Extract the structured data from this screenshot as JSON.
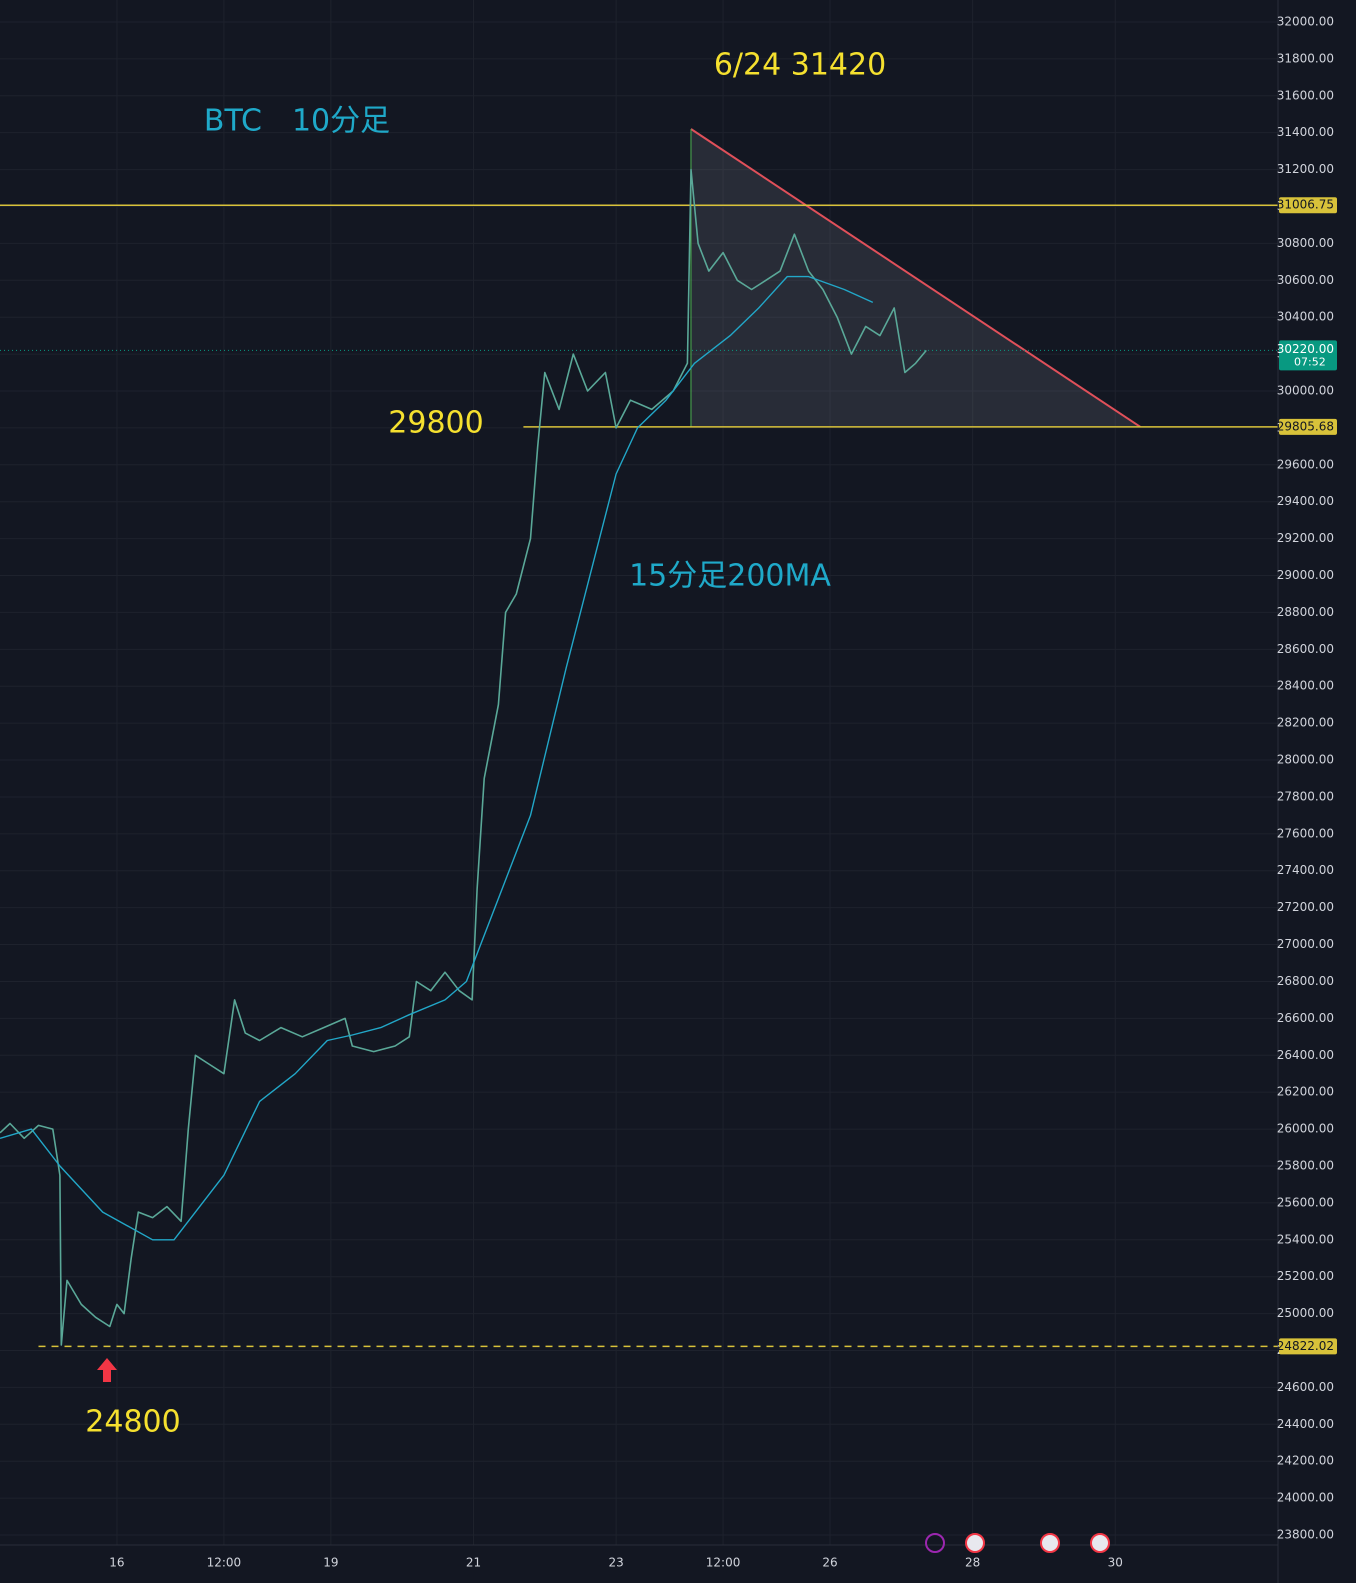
{
  "chart_data": {
    "type": "line",
    "background": "#131722",
    "grid": true,
    "xlim": [
      14.36,
      32.24
    ],
    "ylim": [
      23773,
      32119
    ],
    "xticks": [
      16,
      {
        "value": 17.5,
        "label": "12:00"
      },
      19,
      21,
      23,
      {
        "value": 24.5,
        "label": "12:00"
      },
      26,
      28,
      30
    ],
    "yticks": [
      {
        "value": 23800,
        "label": "23800.00"
      },
      {
        "value": 24000,
        "label": "24000.00"
      },
      {
        "value": 24200,
        "label": "24200.00"
      },
      {
        "value": 24400,
        "label": "24400.00"
      },
      {
        "value": 24600,
        "label": "24600.00"
      },
      {
        "value": 24800,
        "label": "24800.00"
      },
      {
        "value": 25000,
        "label": "25000.00"
      },
      {
        "value": 25200,
        "label": "25200.00"
      },
      {
        "value": 25400,
        "label": "25400.00"
      },
      {
        "value": 25600,
        "label": "25600.00"
      },
      {
        "value": 25800,
        "label": "25800.00"
      },
      {
        "value": 26000,
        "label": "26000.00"
      },
      {
        "value": 26200,
        "label": "26200.00"
      },
      {
        "value": 26400,
        "label": "26400.00"
      },
      {
        "value": 26600,
        "label": "26600.00"
      },
      {
        "value": 26800,
        "label": "26800.00"
      },
      {
        "value": 27000,
        "label": "27000.00"
      },
      {
        "value": 27200,
        "label": "27200.00"
      },
      {
        "value": 27400,
        "label": "27400.00"
      },
      {
        "value": 27600,
        "label": "27600.00"
      },
      {
        "value": 27800,
        "label": "27800.00"
      },
      {
        "value": 28000,
        "label": "28000.00"
      },
      {
        "value": 28200,
        "label": "28200.00"
      },
      {
        "value": 28400,
        "label": "28400.00"
      },
      {
        "value": 28600,
        "label": "28600.00"
      },
      {
        "value": 28800,
        "label": "28800.00"
      },
      {
        "value": 29000,
        "label": "29000.00"
      },
      {
        "value": 29200,
        "label": "29200.00"
      },
      {
        "value": 29400,
        "label": "29400.00"
      },
      {
        "value": 29600,
        "label": "29600.00"
      },
      {
        "value": 29800,
        "label": "29800.00"
      },
      {
        "value": 30000,
        "label": "30000.00"
      },
      {
        "value": 30200,
        "label": "30200.00"
      },
      {
        "value": 30400,
        "label": "30400.00"
      },
      {
        "value": 30600,
        "label": "30600.00"
      },
      {
        "value": 30800,
        "label": "30800.00"
      },
      {
        "value": 31000,
        "label": "31000.00"
      },
      {
        "value": 31200,
        "label": "31200.00"
      },
      {
        "value": 31400,
        "label": "31400.00"
      },
      {
        "value": 31600,
        "label": "31600.00"
      },
      {
        "value": 31800,
        "label": "31800.00"
      },
      {
        "value": 32000,
        "label": "32000.00"
      }
    ],
    "series": [
      {
        "name": "BTC",
        "color": "#5aa898",
        "x": [
          14.36,
          14.5,
          14.7,
          14.9,
          15.1,
          15.2,
          15.22,
          15.3,
          15.5,
          15.7,
          15.9,
          16.0,
          16.1,
          16.2,
          16.3,
          16.5,
          16.7,
          16.9,
          17.0,
          17.1,
          17.3,
          17.5,
          17.65,
          17.8,
          18.0,
          18.3,
          18.6,
          18.9,
          19.2,
          19.3,
          19.6,
          19.9,
          20.1,
          20.2,
          20.4,
          20.6,
          20.8,
          20.98,
          21.05,
          21.15,
          21.35,
          21.45,
          21.6,
          21.8,
          21.9,
          22.0,
          22.2,
          22.4,
          22.6,
          22.85,
          23.0,
          23.2,
          23.5,
          23.8,
          24.0,
          24.05,
          24.15,
          24.3,
          24.5,
          24.7,
          24.9,
          25.1,
          25.3,
          25.5,
          25.7,
          25.9,
          26.1,
          26.3,
          26.5,
          26.7,
          26.9,
          27.05,
          27.2,
          27.35
        ],
        "values": [
          25980,
          26030,
          25950,
          26020,
          26000,
          25750,
          24830,
          25180,
          25050,
          24980,
          24930,
          25050,
          25000,
          25300,
          25550,
          25520,
          25580,
          25500,
          26000,
          26400,
          26350,
          26300,
          26700,
          26520,
          26480,
          26550,
          26500,
          26550,
          26600,
          26450,
          26420,
          26450,
          26500,
          26800,
          26750,
          26850,
          26750,
          26700,
          27300,
          27900,
          28300,
          28800,
          28900,
          29200,
          29700,
          30100,
          29900,
          30200,
          30000,
          30100,
          29800,
          29950,
          29900,
          30000,
          30150,
          31200,
          30800,
          30650,
          30750,
          30600,
          30550,
          30600,
          30650,
          30850,
          30650,
          30550,
          30400,
          30200,
          30350,
          30300,
          30450,
          30100,
          30150,
          30220
        ]
      },
      {
        "name": "15分足200MA",
        "color": "#22a7c8",
        "x": [
          14.36,
          14.8,
          15.2,
          15.8,
          16.5,
          16.8,
          17.5,
          18.0,
          18.5,
          18.95,
          19.3,
          19.7,
          20.1,
          20.6,
          20.9,
          21.4,
          21.8,
          22.3,
          22.7,
          23.0,
          23.3,
          23.7,
          24.1,
          24.6,
          25.0,
          25.4,
          25.7,
          26.2,
          26.6
        ],
        "values": [
          25950,
          26000,
          25800,
          25550,
          25400,
          25400,
          25750,
          26150,
          26300,
          26480,
          26510,
          26550,
          26620,
          26700,
          26800,
          27300,
          27700,
          28500,
          29100,
          29550,
          29800,
          29950,
          30150,
          30300,
          30450,
          30620,
          30620,
          30550,
          30480
        ]
      }
    ],
    "levels": [
      {
        "value": 31006.75,
        "color": "#d8c23a",
        "style": "solid",
        "from": 14.36
      },
      {
        "value": 29805.68,
        "color": "#d8c23a",
        "style": "solid",
        "from": 21.7
      },
      {
        "value": 24822.02,
        "color": "#d8c23a",
        "style": "dashed",
        "from": 14.9
      }
    ],
    "current_price": {
      "value": 30220,
      "label": "30220.00",
      "countdown": "07:52",
      "color": "#089981"
    },
    "triangle": {
      "x": [
        24.05,
        30.35
      ],
      "y": [
        31420,
        29805.68
      ]
    },
    "annotations": [
      "BTC　10分足",
      "6/24 31420",
      "29800",
      "15分足200MA",
      "24800"
    ]
  }
}
